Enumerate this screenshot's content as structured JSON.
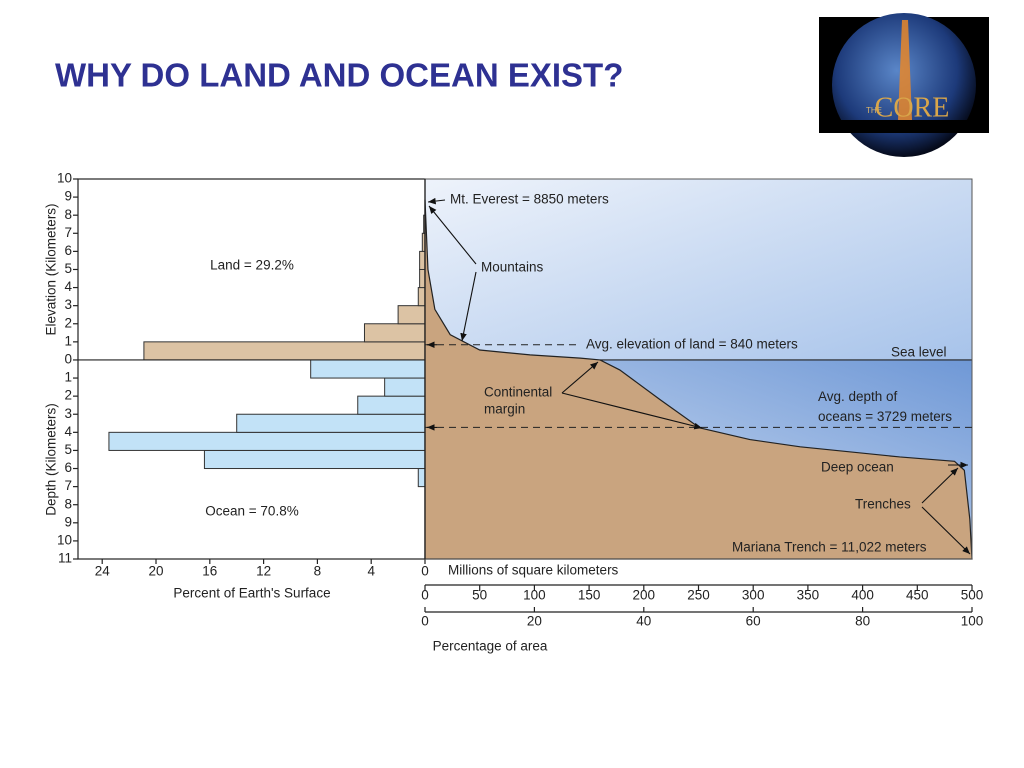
{
  "title": "WHY DO LAND AND OCEAN EXIST?",
  "logo": {
    "small": "THE",
    "main": "CORE"
  },
  "chart_data": [
    {
      "type": "histogram",
      "orientation": "horizontal",
      "xlabel": "Percent of Earth's Surface",
      "ylabels": [
        "Elevation (Kilometers)",
        "Depth (Kilometers)"
      ],
      "bins": [
        -7,
        -6,
        -5,
        -4,
        -3,
        -2,
        -1,
        0,
        1,
        2,
        3,
        4,
        5,
        6,
        7,
        8,
        9
      ],
      "values": [
        0.5,
        16.4,
        23.5,
        14.0,
        5.0,
        3.0,
        8.5,
        20.9,
        4.5,
        2.0,
        0.5,
        0.4,
        0.4,
        0.2,
        0.1,
        0.0
      ],
      "land_color": "#dcc3a4",
      "ocean_color": "#c2e2f7",
      "xlim": [
        25.8,
        0
      ],
      "xticks": [
        24,
        20,
        16,
        12,
        8,
        4,
        0
      ],
      "ylim": [
        -11,
        10
      ],
      "yticks": [
        {
          "value": -11,
          "label": "11"
        },
        {
          "value": -10,
          "label": "10"
        },
        {
          "value": -9,
          "label": "9"
        },
        {
          "value": -8,
          "label": "8"
        },
        {
          "value": -7,
          "label": "7"
        },
        {
          "value": -6,
          "label": "6"
        },
        {
          "value": -5,
          "label": "5"
        },
        {
          "value": -4,
          "label": "4"
        },
        {
          "value": -3,
          "label": "3"
        },
        {
          "value": -2,
          "label": "2"
        },
        {
          "value": -1,
          "label": "1"
        },
        0,
        1,
        2,
        3,
        4,
        5,
        6,
        7,
        8,
        9,
        10
      ],
      "annotations": {
        "land": "Land = 29.2%",
        "ocean": "Ocean = 70.8%"
      }
    },
    {
      "type": "area",
      "xlabel": "Millions of square kilometers",
      "x2label": "Percentage of area",
      "x": [
        0,
        2.7,
        9,
        23,
        50,
        96,
        142,
        160,
        178,
        215,
        251,
        297,
        343,
        434,
        484,
        493,
        498,
        500
      ],
      "y": [
        8.85,
        5.0,
        2.8,
        1.4,
        0.55,
        0.28,
        0.1,
        0,
        -0.55,
        -2.2,
        -3.75,
        -4.4,
        -4.8,
        -5.36,
        -5.6,
        -6.1,
        -8.8,
        -11.0
      ],
      "color": "#c9a47f",
      "xlim": [
        0,
        500
      ],
      "xticks": [
        0,
        50,
        100,
        150,
        200,
        250,
        300,
        350,
        400,
        450,
        500
      ],
      "x2lim": [
        0,
        100
      ],
      "x2ticks": [
        0,
        20,
        40,
        60,
        80,
        100
      ],
      "ylim": [
        -11,
        10
      ],
      "reference_lines": [
        {
          "value": 0.84,
          "label": [
            "Avg. elevation of land = 840 meters"
          ]
        },
        {
          "value": -3.729,
          "label": [
            "Avg. depth of",
            "oceans = 3729 meters"
          ]
        }
      ],
      "annotations": {
        "everest": "Mt. Everest = 8850 meters",
        "mountains": "Mountains",
        "sea_level": "Sea level",
        "continental_margin": [
          "Continental",
          "margin"
        ],
        "deep_ocean": "Deep ocean",
        "trenches": "Trenches",
        "mariana": "Mariana Trench = 11,022 meters"
      }
    }
  ]
}
